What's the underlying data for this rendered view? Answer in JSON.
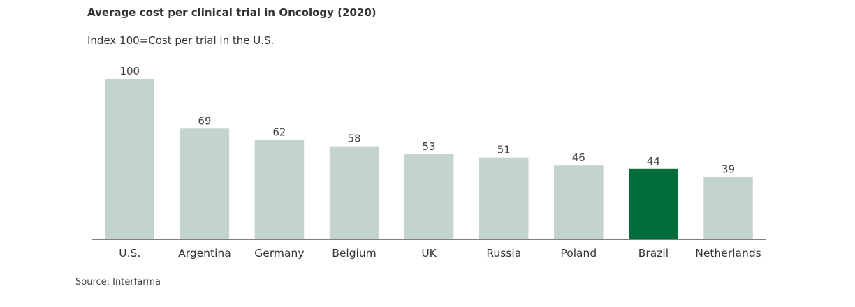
{
  "chart_data": {
    "type": "bar",
    "title": "Average cost per clinical trial in Oncology (2020)",
    "subtitle": "Index 100=Cost per trial in the U.S.",
    "categories": [
      "U.S.",
      "Argentina",
      "Germany",
      "Belgium",
      "UK",
      "Russia",
      "Poland",
      "Brazil",
      "Netherlands"
    ],
    "values": [
      100,
      69,
      62,
      58,
      53,
      51,
      46,
      44,
      39
    ],
    "ylim": [
      0,
      100
    ],
    "grid": false,
    "legend": "none",
    "highlight_category": "Brazil",
    "colors": {
      "default": "#c3d3ce",
      "highlight": "#006d3a",
      "axis": "#333333"
    }
  },
  "source": "Source: Interfarma"
}
